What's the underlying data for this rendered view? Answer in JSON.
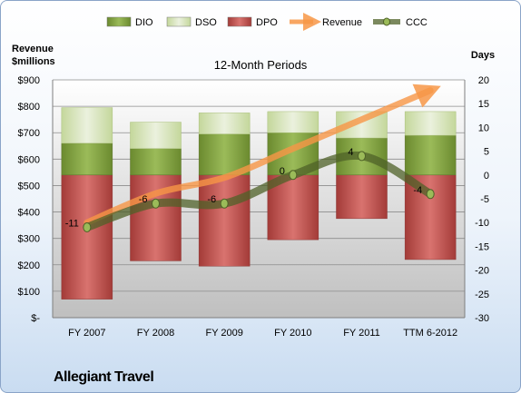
{
  "chart_data": {
    "type": "bar",
    "title": "12-Month Periods",
    "company": "Allegiant Travel",
    "ylabel_left": "Revenue\n$millions",
    "ylabel_right": "Days",
    "categories": [
      "FY 2007",
      "FY 2008",
      "FY 2009",
      "FY 2010",
      "FY 2011",
      "TTM 6-2012"
    ],
    "left_axis": {
      "min": 0,
      "max": 900,
      "step": 100,
      "tick_labels": [
        "$-",
        "$100",
        "$200",
        "$300",
        "$400",
        "$500",
        "$600",
        "$700",
        "$800",
        "$900"
      ]
    },
    "right_axis": {
      "min": -30,
      "max": 20,
      "step": 5
    },
    "series": [
      {
        "name": "DIO",
        "axis": "left",
        "kind": "stacked-bar",
        "values": [
          120,
          100,
          155,
          160,
          140,
          150
        ],
        "color": "#77933c"
      },
      {
        "name": "DSO",
        "axis": "left",
        "kind": "stacked-bar",
        "values": [
          135,
          100,
          80,
          80,
          100,
          90
        ],
        "color": "#d7e4bd"
      },
      {
        "name": "DPO",
        "axis": "left",
        "kind": "bar-below",
        "values": [
          470,
          325,
          345,
          245,
          165,
          320
        ],
        "color": "#c0504d"
      },
      {
        "name": "Revenue",
        "axis": "left",
        "kind": "line-arrow",
        "values": [
          360,
          470,
          530,
          640,
          750,
          860
        ],
        "color": "#f79646"
      },
      {
        "name": "CCC",
        "axis": "right",
        "kind": "line-markers",
        "values": [
          -11,
          -6,
          -6,
          0,
          4,
          -4
        ],
        "data_labels": [
          "-11",
          "-6",
          "-6",
          "0",
          "4",
          "-4"
        ],
        "color": "#4f6228"
      }
    ],
    "dpo_top": 540,
    "legend_position": "top",
    "grid": true
  }
}
